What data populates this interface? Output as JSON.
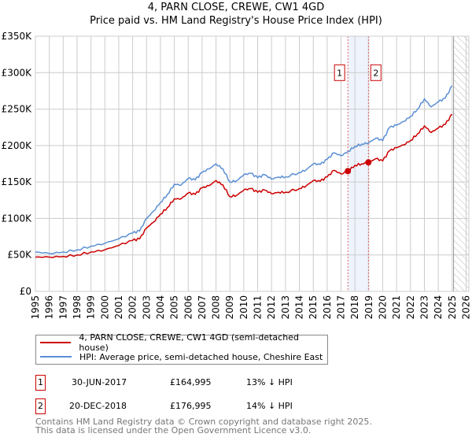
{
  "title_line1": "4, PARN CLOSE, CREWE, CW1 4GD",
  "title_line2": "Price paid vs. HM Land Registry's House Price Index (HPI)",
  "legend": [
    {
      "label": "4, PARN CLOSE, CREWE, CW1 4GD (semi-detached house)",
      "color": "#cc0000"
    },
    {
      "label": "HPI: Average price, semi-detached house, Cheshire East",
      "color": "#5b8fd4"
    }
  ],
  "sales": [
    {
      "n": "1",
      "date": "30-JUN-2017",
      "price": "£164,995",
      "hpi": "13% ↓ HPI"
    },
    {
      "n": "2",
      "date": "20-DEC-2018",
      "price": "£176,995",
      "hpi": "14% ↓ HPI"
    }
  ],
  "footer": [
    "Contains HM Land Registry data © Crown copyright and database right 2025.",
    "This data is licensed under the Open Government Licence v3.0."
  ],
  "chart_data": {
    "type": "line",
    "title": "4, PARN CLOSE, CREWE, CW1 4GD — Price paid vs. HM Land Registry's House Price Index (HPI)",
    "xlim": [
      1995,
      2026.2
    ],
    "ylim": [
      0,
      350000
    ],
    "yticks": [
      0,
      50000,
      100000,
      150000,
      200000,
      250000,
      300000,
      350000
    ],
    "ytick_labels": [
      "£0",
      "£50K",
      "£100K",
      "£150K",
      "£200K",
      "£250K",
      "£300K",
      "£350K"
    ],
    "xticks": [
      1995,
      1996,
      1997,
      1998,
      1999,
      2000,
      2001,
      2002,
      2003,
      2004,
      2005,
      2006,
      2007,
      2008,
      2009,
      2010,
      2011,
      2012,
      2013,
      2014,
      2015,
      2016,
      2017,
      2018,
      2019,
      2020,
      2021,
      2022,
      2023,
      2024,
      2025,
      2026
    ],
    "grid": true,
    "forecast_hatch_from": 2025.1,
    "highlight_band": [
      2017.49,
      2018.97
    ],
    "series": [
      {
        "name": "HPI",
        "color": "#5b8fd4",
        "x": [
          1995,
          1996,
          1997,
          1998,
          1999,
          2000,
          2001,
          2002,
          2002.5,
          2003,
          2003.5,
          2004,
          2004.5,
          2005,
          2005.5,
          2006,
          2006.5,
          2007,
          2007.5,
          2008,
          2008.5,
          2009,
          2009.5,
          2010,
          2010.5,
          2011,
          2011.5,
          2012,
          2012.5,
          2013,
          2014,
          2014.5,
          2015,
          2015.5,
          2016,
          2016.5,
          2017,
          2017.5,
          2018,
          2018.5,
          2019,
          2019.5,
          2020,
          2020.5,
          2021,
          2021.5,
          2022,
          2022.5,
          2023,
          2023.5,
          2024,
          2024.5,
          2025
        ],
        "y": [
          54000,
          52000,
          54000,
          57000,
          62000,
          66000,
          72000,
          80000,
          83000,
          100000,
          110000,
          122000,
          133000,
          147000,
          146000,
          155000,
          153000,
          163000,
          168000,
          175000,
          168000,
          150000,
          152000,
          160000,
          162000,
          156000,
          160000,
          154000,
          157000,
          157000,
          163000,
          167000,
          175000,
          174000,
          181000,
          190000,
          186000,
          192000,
          199000,
          202000,
          204000,
          210000,
          207000,
          225000,
          228000,
          233000,
          240000,
          250000,
          264000,
          253000,
          260000,
          265000,
          282000
        ]
      },
      {
        "name": "Price paid (indexed)",
        "color": "#cc0000",
        "x": [
          1995,
          1996,
          1997,
          1998,
          1999,
          2000,
          2001,
          2002,
          2002.5,
          2003,
          2003.5,
          2004,
          2004.5,
          2005,
          2005.5,
          2006,
          2006.5,
          2007,
          2007.5,
          2008,
          2008.5,
          2009,
          2009.5,
          2010,
          2010.5,
          2011,
          2011.5,
          2012,
          2012.5,
          2013,
          2014,
          2014.5,
          2015,
          2015.5,
          2016,
          2016.5,
          2017,
          2017.5,
          2018,
          2018.5,
          2019,
          2019.5,
          2020,
          2020.5,
          2021,
          2021.5,
          2022,
          2022.5,
          2023,
          2023.5,
          2024,
          2024.5,
          2025
        ],
        "y": [
          47000,
          47000,
          48000,
          50000,
          54000,
          57000,
          63000,
          70000,
          72000,
          87000,
          95000,
          106000,
          115000,
          127000,
          127000,
          135000,
          133000,
          142000,
          145000,
          152000,
          146000,
          130000,
          132000,
          139000,
          141000,
          136000,
          139000,
          134000,
          136000,
          136000,
          141000,
          145000,
          152000,
          151000,
          157000,
          166000,
          161000,
          165000,
          173000,
          175000,
          177000,
          182000,
          179000,
          193000,
          197000,
          201000,
          207000,
          216000,
          227000,
          218000,
          224000,
          229000,
          243000
        ]
      }
    ],
    "points": [
      {
        "label": "1",
        "x": 2017.49,
        "y": 164995
      },
      {
        "label": "2",
        "x": 2018.97,
        "y": 176995
      }
    ]
  }
}
